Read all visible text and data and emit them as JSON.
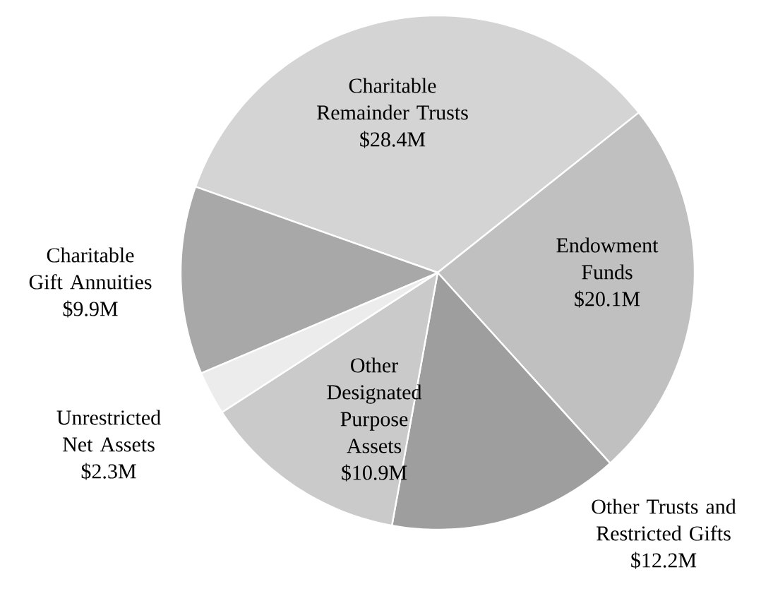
{
  "chart_data": {
    "type": "pie",
    "categories": [
      "Charitable Remainder Trusts",
      "Endowment Funds",
      "Other Trusts and Restricted Gifts",
      "Other Designated Purpose Assets",
      "Unrestricted Net Assets",
      "Charitable Gift Annuities"
    ],
    "values": [
      28.4,
      20.1,
      12.2,
      10.9,
      2.3,
      9.9
    ],
    "value_labels": [
      "$28.4M",
      "$20.1M",
      "$12.2M",
      "$10.9M",
      "$2.3M",
      "$9.9M"
    ],
    "colors": [
      "#d4d4d4",
      "#c0c0c0",
      "#9e9e9e",
      "#cacaca",
      "#ececec",
      "#a8a8a8"
    ]
  }
}
